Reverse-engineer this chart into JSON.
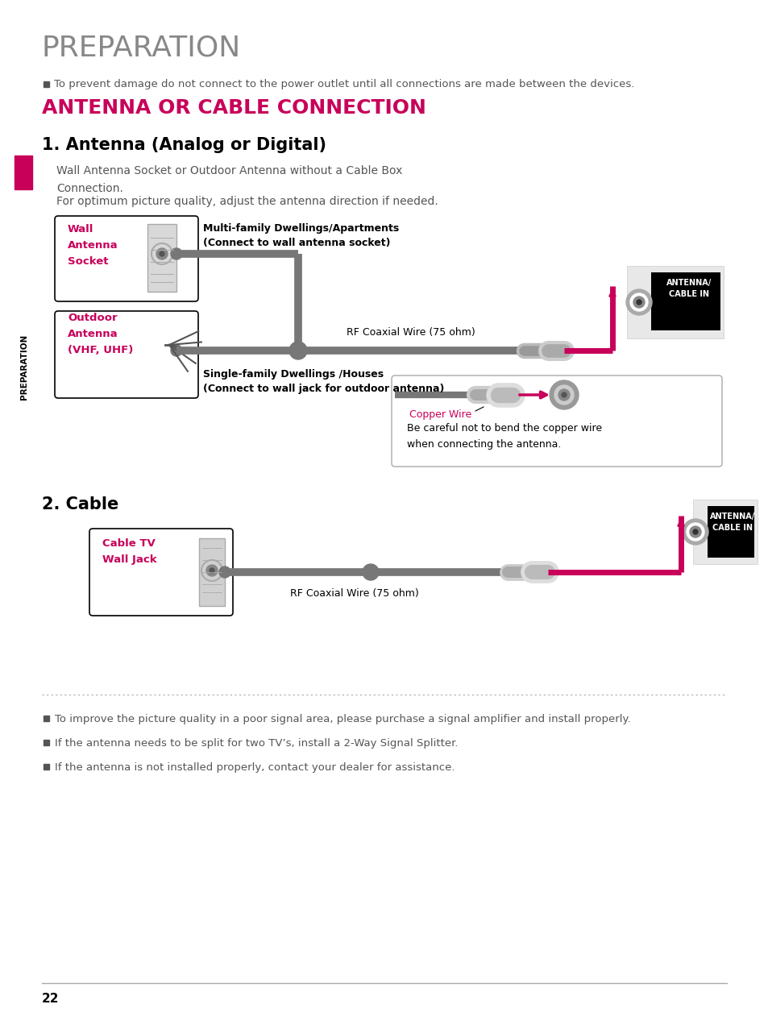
{
  "bg_color": "#ffffff",
  "title_main": "PREPARATION",
  "title_main_color": "#888888",
  "title_section": "ANTENNA OR CABLE CONNECTION",
  "title_section_color": "#c8005a",
  "bullet_top": "To prevent damage do not connect to the power outlet until all connections are made between the devices.",
  "section1_title": "1. Antenna (Analog or Digital)",
  "section1_text1": "Wall Antenna Socket or Outdoor Antenna without a Cable Box\nConnection.",
  "section1_text2": "For optimum picture quality, adjust the antenna direction if needed.",
  "wall_label": "Wall\nAntenna\nSocket",
  "wall_label_color": "#c8005a",
  "outdoor_label": "Outdoor\nAntenna\n(VHF, UHF)",
  "outdoor_label_color": "#c8005a",
  "multi_family_text": "Multi-family Dwellings/Apartments\n(Connect to wall antenna socket)",
  "single_family_text": "Single-family Dwellings /Houses\n(Connect to wall jack for outdoor antenna)",
  "rf_coax_text1": "RF Coaxial Wire (75 ohm)",
  "antenna_cable_in_text": "ANTENNA/\nCABLE IN",
  "copper_wire_label": "Copper Wire",
  "copper_wire_note": "Be careful not to bend the copper wire\nwhen connecting the antenna.",
  "section2_title": "2. Cable",
  "cable_tv_label": "Cable TV\nWall Jack",
  "cable_tv_color": "#c8005a",
  "rf_coax_text2": "RF Coaxial Wire (75 ohm)",
  "bullet1": "To improve the picture quality in a poor signal area, please purchase a signal amplifier and install properly.",
  "bullet2": "If the antenna needs to be split for two TV’s, install a 2-Way Signal Splitter.",
  "bullet3": "If the antenna is not installed properly, contact your dealer for assistance.",
  "page_num": "22",
  "sidebar_text": "PREPARATION",
  "sidebar_color": "#c8005a",
  "dark_gray": "#555555",
  "med_gray": "#888888",
  "light_gray": "#cccccc",
  "cable_color": "#777777",
  "pink_color": "#c8005a",
  "box_edge": "#999999"
}
